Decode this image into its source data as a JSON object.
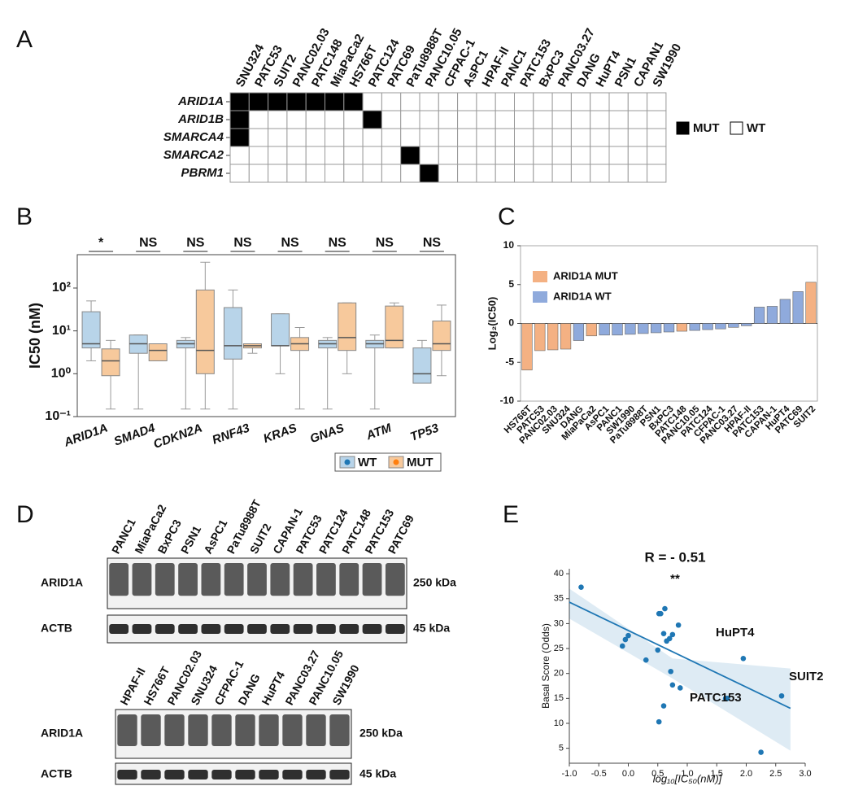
{
  "figure": {
    "panel_labels": [
      "A",
      "B",
      "C",
      "D",
      "E"
    ]
  },
  "chart_data": [
    {
      "type": "heatmap",
      "columns": [
        "SNU324",
        "PATC53",
        "SUIT2",
        "PANC02.03",
        "PATC148",
        "MiaPaCa2",
        "HS766T",
        "PATC124",
        "PATC69",
        "PaTu8988T",
        "PANC10.05",
        "CFPAC-1",
        "AsPC1",
        "HPAF-II",
        "PANC1",
        "PATC153",
        "BxPC3",
        "PANC03.27",
        "DANG",
        "HuPT4",
        "PSN1",
        "CAPAN1",
        "SW1990"
      ],
      "rows": [
        "ARID1A",
        "ARID1B",
        "SMARCA4",
        "SMARCA2",
        "PBRM1"
      ],
      "values": [
        [
          1,
          1,
          1,
          1,
          1,
          1,
          1,
          0,
          0,
          0,
          0,
          0,
          0,
          0,
          0,
          0,
          0,
          0,
          0,
          0,
          0,
          0,
          0
        ],
        [
          1,
          0,
          0,
          0,
          0,
          0,
          0,
          1,
          0,
          0,
          0,
          0,
          0,
          0,
          0,
          0,
          0,
          0,
          0,
          0,
          0,
          0,
          0
        ],
        [
          1,
          0,
          0,
          0,
          0,
          0,
          0,
          0,
          0,
          0,
          0,
          0,
          0,
          0,
          0,
          0,
          0,
          0,
          0,
          0,
          0,
          0,
          0
        ],
        [
          0,
          0,
          0,
          0,
          0,
          0,
          0,
          0,
          0,
          1,
          0,
          0,
          0,
          0,
          0,
          0,
          0,
          0,
          0,
          0,
          0,
          0,
          0
        ],
        [
          0,
          0,
          0,
          0,
          0,
          0,
          0,
          0,
          0,
          0,
          1,
          0,
          0,
          0,
          0,
          0,
          0,
          0,
          0,
          0,
          0,
          0,
          0
        ]
      ],
      "legend": [
        {
          "label": "MUT",
          "color": "#000000"
        },
        {
          "label": "WT",
          "color": "#ffffff"
        }
      ]
    },
    {
      "type": "box",
      "ylabel": "IC50 (nM)",
      "log_scale": true,
      "ylim": [
        0.1,
        600
      ],
      "yticks": [
        {
          "value": 0.1,
          "label": "10⁻¹"
        },
        {
          "value": 1,
          "label": "10⁰"
        },
        {
          "value": 10,
          "label": "10¹"
        },
        {
          "value": 100,
          "label": "10²"
        }
      ],
      "categories": [
        "ARID1A",
        "SMAD4",
        "CDKN2A",
        "RNF43",
        "KRAS",
        "GNAS",
        "ATM",
        "TP53"
      ],
      "significance": [
        "*",
        "NS",
        "NS",
        "NS",
        "NS",
        "NS",
        "NS",
        "NS"
      ],
      "series": [
        {
          "name": "WT",
          "color": "#1f77b4",
          "box_color": "#b8d4e9",
          "boxes": [
            {
              "min": 2,
              "q1": 4,
              "median": 5,
              "q3": 28,
              "max": 50
            },
            {
              "min": 0.15,
              "q1": 3,
              "median": 5,
              "q3": 8,
              "max": 8
            },
            {
              "min": 0.15,
              "q1": 4,
              "median": 5,
              "q3": 6,
              "max": 7
            },
            {
              "min": 0.15,
              "q1": 2.2,
              "median": 4.5,
              "q3": 35,
              "max": 90
            },
            {
              "min": 1,
              "q1": 4.5,
              "median": 4.5,
              "q3": 25,
              "max": 25
            },
            {
              "min": 0.15,
              "q1": 4,
              "median": 5,
              "q3": 6,
              "max": 7
            },
            {
              "min": 0.15,
              "q1": 4,
              "median": 5,
              "q3": 6,
              "max": 8
            },
            {
              "min": 0.6,
              "q1": 0.6,
              "median": 1,
              "q3": 4,
              "max": 6
            }
          ]
        },
        {
          "name": "MUT",
          "color": "#ff7f0e",
          "box_color": "#f7c99c",
          "boxes": [
            {
              "min": 0.15,
              "q1": 0.9,
              "median": 2,
              "q3": 3.8,
              "max": 6
            },
            {
              "min": 2,
              "q1": 2,
              "median": 3.5,
              "q3": 5,
              "max": 5
            },
            {
              "min": 0.15,
              "q1": 1,
              "median": 3.5,
              "q3": 90,
              "max": 400
            },
            {
              "min": 3,
              "q1": 4,
              "median": 4.5,
              "q3": 5,
              "max": 5
            },
            {
              "min": 0.15,
              "q1": 3.5,
              "median": 5,
              "q3": 7,
              "max": 12
            },
            {
              "min": 1,
              "q1": 3.5,
              "median": 7,
              "q3": 45,
              "max": 45
            },
            {
              "min": 4,
              "q1": 4,
              "median": 6,
              "q3": 38,
              "max": 45
            },
            {
              "min": 0.9,
              "q1": 3.5,
              "median": 5,
              "q3": 17,
              "max": 40
            }
          ]
        }
      ]
    },
    {
      "type": "bar",
      "ylabel": "Log₂(IC50)",
      "ylim": [
        -10,
        10
      ],
      "yticks": [
        -10,
        -5,
        0,
        5,
        10
      ],
      "categories": [
        "HS766T",
        "PATC53",
        "PANC02.03",
        "SNU324",
        "DANG",
        "MiaPaCa2",
        "AsPC1",
        "PANC1",
        "SW1990",
        "PaTu8988T",
        "PSN1",
        "BxPC3",
        "PATC148",
        "PANC10.05",
        "PATC124",
        "CFPAC-1",
        "PANC03.27",
        "HPAF-II",
        "PATC153",
        "CAPAN-1",
        "HuPT4",
        "PATC69",
        "SUIT2"
      ],
      "series": [
        {
          "name": "ARID1A MUT",
          "color": "#f4b183",
          "values": [
            -6,
            -3.5,
            -3.4,
            -3.3,
            null,
            -1.6,
            null,
            null,
            null,
            null,
            null,
            null,
            -1.0,
            null,
            null,
            null,
            null,
            null,
            null,
            null,
            null,
            null,
            5.3
          ]
        },
        {
          "name": "ARID1A WT",
          "color": "#8faadc",
          "values": [
            null,
            null,
            null,
            null,
            -2.2,
            null,
            -1.5,
            -1.5,
            -1.4,
            -1.3,
            -1.2,
            -1.1,
            null,
            -0.9,
            -0.8,
            -0.7,
            -0.5,
            -0.3,
            2.1,
            2.2,
            3.1,
            4.1,
            null
          ]
        }
      ]
    },
    {
      "type": "scatter",
      "title": "R = - 0.51",
      "subtitle": "**",
      "xlabel": "log₁₀[IC₅₀(nM)]",
      "ylabel": "Basal Score (Odds)",
      "color": "#1f77b4",
      "xlim": [
        -1,
        3
      ],
      "ylim": [
        2,
        41
      ],
      "xticks": [
        {
          "value": -1,
          "label": "-1.0"
        },
        -0.5,
        {
          "value": 0,
          "label": "0.0"
        },
        0.5,
        {
          "value": 1,
          "label": "1.0"
        },
        1.5,
        {
          "value": 2,
          "label": "2.0"
        },
        2.5,
        {
          "value": 3,
          "label": "3.0"
        }
      ],
      "yticks": [
        5,
        10,
        15,
        20,
        25,
        30,
        35,
        40
      ],
      "x": [
        -0.8,
        -0.1,
        -0.05,
        0.0,
        0.3,
        0.52,
        0.55,
        0.6,
        0.62,
        0.65,
        0.7,
        0.75,
        0.5,
        0.72,
        0.75,
        0.85,
        0.88,
        0.52,
        0.6,
        1.65,
        1.68,
        1.95,
        2.25,
        2.6
      ],
      "y": [
        37.3,
        25.5,
        26.8,
        27.6,
        22.7,
        32,
        32,
        28,
        33,
        26.5,
        27,
        27.8,
        24.7,
        20.4,
        17.7,
        29.7,
        17.1,
        10.3,
        13.5,
        15,
        15,
        23,
        4.2,
        15.5
      ],
      "fit": {
        "x": [
          -1,
          2.75
        ],
        "y": [
          34.3,
          13
        ]
      },
      "ci": {
        "x": [
          -1,
          0.75,
          2.75
        ],
        "upper": [
          37,
          23,
          21
        ],
        "lower": [
          31,
          19,
          4.5
        ]
      },
      "annotations": [
        "HuPT4",
        "SUIT2",
        "PATC153"
      ]
    }
  ],
  "blots": [
    {
      "lanes": [
        "PANC1",
        "MiaPaCa2",
        "BxPC3",
        "PSN1",
        "AsPC1",
        "PaTu8988T",
        "SUIT2",
        "CAPAN-1",
        "PATC53",
        "PATC124",
        "PATC148",
        "PATC153",
        "PATC69"
      ],
      "bands": [
        {
          "label": "ARID1A",
          "size": "250 kDa"
        },
        {
          "label": "ACTB",
          "size": "45 kDa"
        }
      ]
    },
    {
      "lanes": [
        "HPAF-II",
        "HS766T",
        "PANC02.03",
        "SNU324",
        "CFPAC-1",
        "DANG",
        "HuPT4",
        "PANC03.27",
        "PANC10.05",
        "SW1990"
      ],
      "bands": [
        {
          "label": "ARID1A",
          "size": "250 kDa"
        },
        {
          "label": "ACTB",
          "size": "45 kDa"
        }
      ]
    }
  ]
}
